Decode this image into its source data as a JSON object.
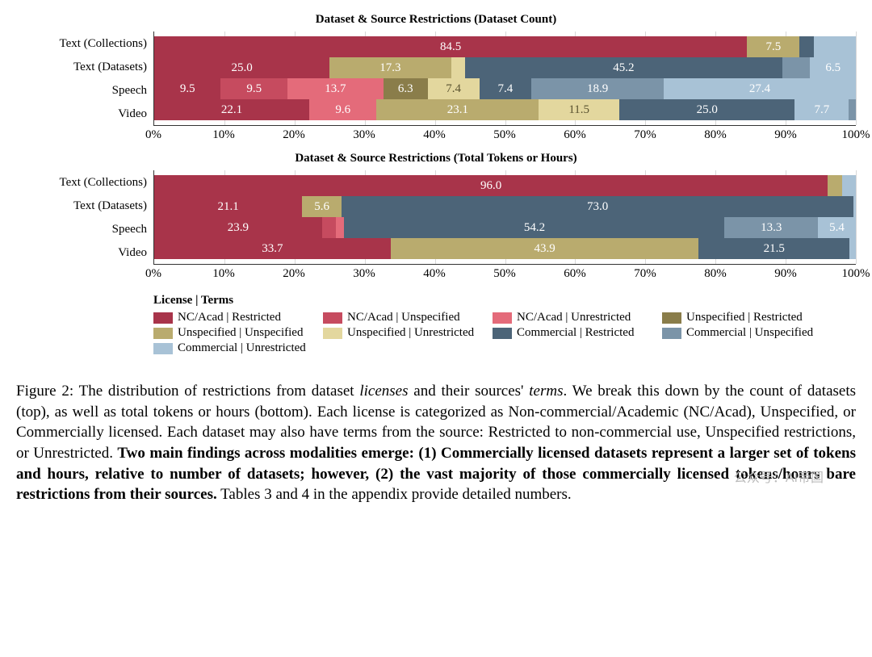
{
  "colors": {
    "nc_restricted": "#a8344a",
    "nc_unspecified": "#c64b5f",
    "nc_unrestricted": "#e46b7a",
    "un_restricted": "#8a7d4a",
    "un_unspecified": "#b9ab6e",
    "un_unrestricted": "#e3d79e",
    "co_restricted": "#4c6478",
    "co_unspecified": "#7b94a8",
    "co_unrestricted": "#a8c2d6",
    "grid": "#d8d8d8",
    "axis": "#333333",
    "bg": "#ffffff"
  },
  "typography": {
    "title_fontsize": 15,
    "axis_fontsize": 15,
    "seg_fontsize": 15,
    "legend_fontsize": 15,
    "caption_fontsize": 19
  },
  "axis": {
    "xmin": 0,
    "xmax": 100,
    "ticks": [
      0,
      10,
      20,
      30,
      40,
      50,
      60,
      70,
      80,
      90,
      100
    ],
    "tick_labels": [
      "0%",
      "10%",
      "20%",
      "30%",
      "40%",
      "50%",
      "60%",
      "70%",
      "80%",
      "90%",
      "100%"
    ]
  },
  "legend": {
    "title": "License | Terms",
    "items": [
      {
        "key": "nc_restricted",
        "label": "NC/Acad | Restricted"
      },
      {
        "key": "nc_unspecified",
        "label": "NC/Acad | Unspecified"
      },
      {
        "key": "nc_unrestricted",
        "label": "NC/Acad | Unrestricted"
      },
      {
        "key": "un_restricted",
        "label": "Unspecified | Restricted"
      },
      {
        "key": "un_unspecified",
        "label": "Unspecified | Unspecified"
      },
      {
        "key": "un_unrestricted",
        "label": "Unspecified | Unrestricted"
      },
      {
        "key": "co_restricted",
        "label": "Commercial | Restricted"
      },
      {
        "key": "co_unspecified",
        "label": "Commercial | Unspecified"
      },
      {
        "key": "co_unrestricted",
        "label": "Commercial | Unrestricted"
      }
    ]
  },
  "chart1": {
    "title": "Dataset & Source Restrictions (Dataset Count)",
    "categories": [
      "Text (Collections)",
      "Text (Datasets)",
      "Speech",
      "Video"
    ],
    "rows": [
      [
        {
          "key": "nc_restricted",
          "v": 84.5,
          "label": "84.5"
        },
        {
          "key": "un_unspecified",
          "v": 7.5,
          "label": "7.5"
        },
        {
          "key": "co_restricted",
          "v": 2.0,
          "label": ""
        },
        {
          "key": "co_unrestricted",
          "v": 6.0,
          "label": ""
        }
      ],
      [
        {
          "key": "nc_restricted",
          "v": 25.0,
          "label": "25.0"
        },
        {
          "key": "un_unspecified",
          "v": 17.3,
          "label": "17.3"
        },
        {
          "key": "un_unrestricted",
          "v": 2.0,
          "label": ""
        },
        {
          "key": "co_restricted",
          "v": 45.2,
          "label": "45.2"
        },
        {
          "key": "co_unspecified",
          "v": 4.0,
          "label": ""
        },
        {
          "key": "co_unrestricted",
          "v": 6.5,
          "label": "6.5"
        }
      ],
      [
        {
          "key": "nc_restricted",
          "v": 9.5,
          "label": "9.5"
        },
        {
          "key": "nc_unspecified",
          "v": 9.5,
          "label": "9.5"
        },
        {
          "key": "nc_unrestricted",
          "v": 13.7,
          "label": "13.7"
        },
        {
          "key": "un_restricted",
          "v": 6.3,
          "label": "6.3"
        },
        {
          "key": "un_unrestricted",
          "v": 7.4,
          "label": "7.4"
        },
        {
          "key": "co_restricted",
          "v": 7.4,
          "label": "7.4"
        },
        {
          "key": "co_unspecified",
          "v": 18.9,
          "label": "18.9"
        },
        {
          "key": "co_unrestricted",
          "v": 27.4,
          "label": "27.4"
        }
      ],
      [
        {
          "key": "nc_restricted",
          "v": 22.1,
          "label": "22.1"
        },
        {
          "key": "nc_unrestricted",
          "v": 9.6,
          "label": "9.6"
        },
        {
          "key": "un_unspecified",
          "v": 23.1,
          "label": "23.1"
        },
        {
          "key": "un_unrestricted",
          "v": 11.5,
          "label": "11.5"
        },
        {
          "key": "co_restricted",
          "v": 25.0,
          "label": "25.0"
        },
        {
          "key": "co_unrestricted",
          "v": 7.7,
          "label": "7.7"
        },
        {
          "key": "co_unspecified",
          "v": 1.0,
          "label": ""
        }
      ]
    ]
  },
  "chart2": {
    "title": "Dataset & Source Restrictions (Total Tokens or Hours)",
    "categories": [
      "Text (Collections)",
      "Text (Datasets)",
      "Speech",
      "Video"
    ],
    "rows": [
      [
        {
          "key": "nc_restricted",
          "v": 96.0,
          "label": "96.0"
        },
        {
          "key": "un_unspecified",
          "v": 2.0,
          "label": ""
        },
        {
          "key": "co_unrestricted",
          "v": 2.0,
          "label": ""
        }
      ],
      [
        {
          "key": "nc_restricted",
          "v": 21.1,
          "label": "21.1"
        },
        {
          "key": "un_unspecified",
          "v": 5.6,
          "label": "5.6"
        },
        {
          "key": "co_restricted",
          "v": 73.0,
          "label": "73.0"
        },
        {
          "key": "co_unrestricted",
          "v": 0.3,
          "label": ""
        }
      ],
      [
        {
          "key": "nc_restricted",
          "v": 23.9,
          "label": "23.9"
        },
        {
          "key": "nc_unspecified",
          "v": 2.0,
          "label": ""
        },
        {
          "key": "nc_unrestricted",
          "v": 1.2,
          "label": ""
        },
        {
          "key": "co_restricted",
          "v": 54.2,
          "label": "54.2"
        },
        {
          "key": "co_unspecified",
          "v": 13.3,
          "label": "13.3"
        },
        {
          "key": "co_unrestricted",
          "v": 5.4,
          "label": "5.4"
        }
      ],
      [
        {
          "key": "nc_restricted",
          "v": 33.7,
          "label": "33.7"
        },
        {
          "key": "un_unspecified",
          "v": 43.9,
          "label": "43.9"
        },
        {
          "key": "co_restricted",
          "v": 21.5,
          "label": "21.5"
        },
        {
          "key": "co_unrestricted",
          "v": 0.9,
          "label": ""
        }
      ]
    ]
  },
  "caption": {
    "lead": "Figure 2: The distribution of restrictions from dataset ",
    "it1": "licenses",
    "mid1": " and their sources' ",
    "it2": "terms",
    "mid2": ". We break this down by the count of datasets (top), as well as total tokens or hours (bottom). Each license is categorized as Non-commercial/Academic (NC/Acad), Unspecified, or Commercially licensed. Each dataset may also have terms from the source: Restricted to non-commercial use, Unspecified restrictions, or Unrestricted. ",
    "bold": "Two main findings across modalities emerge: (1) Commercially licensed datasets represent a larger set of tokens and hours, relative to number of datasets; however, (2) the vast majority of those commercially licensed tokens/hours bare restrictions from their sources.",
    "tail": " Tables 3 and 4 in the appendix provide detailed numbers."
  },
  "watermark": "公众号：AI帝国"
}
